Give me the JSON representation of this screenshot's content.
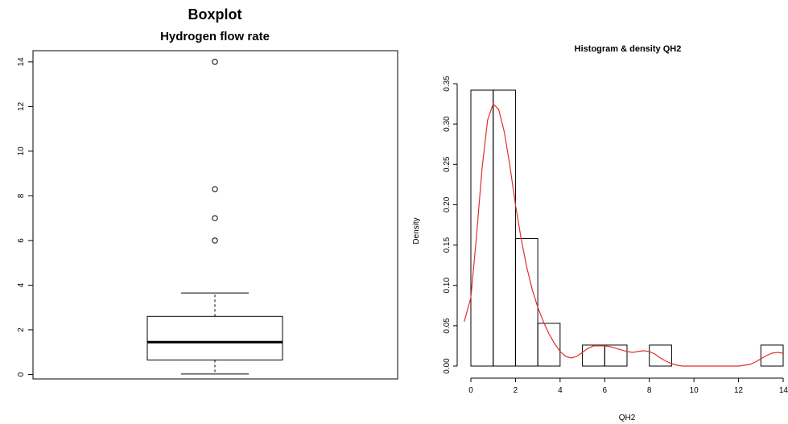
{
  "chart_data": [
    {
      "type": "boxplot",
      "title": "Boxplot",
      "subtitle": "Hydrogen flow rate",
      "xlabel": "",
      "ylabel": "",
      "ylim": [
        -0.2,
        14.5
      ],
      "yticks": [
        0,
        2,
        4,
        6,
        8,
        10,
        12,
        14
      ],
      "stats": {
        "lower_whisker": 0.02,
        "q1": 0.65,
        "median": 1.45,
        "q3": 2.6,
        "upper_whisker": 3.65
      },
      "outliers": [
        6.0,
        7.0,
        8.3,
        14.0
      ],
      "grid": false
    },
    {
      "type": "histogram",
      "title": "Histogram & density QH2",
      "xlabel": "QH2",
      "ylabel": "Density",
      "xlim": [
        0,
        14
      ],
      "ylim": [
        0,
        0.35
      ],
      "xticks": [
        0,
        2,
        4,
        6,
        8,
        10,
        12,
        14
      ],
      "yticks": [
        0.0,
        0.05,
        0.1,
        0.15,
        0.2,
        0.25,
        0.3,
        0.35
      ],
      "bins": [
        {
          "x0": 0,
          "x1": 1,
          "density": 0.342
        },
        {
          "x0": 1,
          "x1": 2,
          "density": 0.342
        },
        {
          "x0": 2,
          "x1": 3,
          "density": 0.158
        },
        {
          "x0": 3,
          "x1": 4,
          "density": 0.053
        },
        {
          "x0": 4,
          "x1": 5,
          "density": 0.0
        },
        {
          "x0": 5,
          "x1": 6,
          "density": 0.026
        },
        {
          "x0": 6,
          "x1": 7,
          "density": 0.026
        },
        {
          "x0": 7,
          "x1": 8,
          "density": 0.0
        },
        {
          "x0": 8,
          "x1": 9,
          "density": 0.026
        },
        {
          "x0": 9,
          "x1": 10,
          "density": 0.0
        },
        {
          "x0": 10,
          "x1": 11,
          "density": 0.0
        },
        {
          "x0": 11,
          "x1": 12,
          "density": 0.0
        },
        {
          "x0": 12,
          "x1": 13,
          "density": 0.0
        },
        {
          "x0": 13,
          "x1": 14,
          "density": 0.026
        }
      ],
      "density_curve": {
        "color": "#e0302a",
        "x": [
          -0.3,
          0.0,
          0.25,
          0.5,
          0.75,
          1.0,
          1.25,
          1.5,
          1.75,
          2.0,
          2.25,
          2.5,
          2.75,
          3.0,
          3.25,
          3.5,
          3.75,
          4.0,
          4.25,
          4.5,
          4.75,
          5.0,
          5.25,
          5.5,
          5.75,
          6.0,
          6.25,
          6.5,
          6.75,
          7.0,
          7.25,
          7.5,
          7.75,
          8.0,
          8.25,
          8.5,
          8.75,
          9.0,
          9.25,
          9.5,
          10.0,
          10.5,
          11.0,
          11.5,
          12.0,
          12.5,
          12.75,
          13.0,
          13.25,
          13.5,
          13.75,
          14.0
        ],
        "y": [
          0.055,
          0.085,
          0.16,
          0.245,
          0.305,
          0.325,
          0.318,
          0.29,
          0.248,
          0.2,
          0.158,
          0.123,
          0.095,
          0.073,
          0.055,
          0.04,
          0.028,
          0.018,
          0.012,
          0.01,
          0.012,
          0.017,
          0.022,
          0.025,
          0.025,
          0.025,
          0.024,
          0.022,
          0.02,
          0.018,
          0.017,
          0.018,
          0.019,
          0.018,
          0.015,
          0.01,
          0.006,
          0.003,
          0.001,
          0.0,
          0.0,
          0.0,
          0.0,
          0.0,
          0.0,
          0.002,
          0.005,
          0.009,
          0.013,
          0.016,
          0.017,
          0.016
        ]
      },
      "bar_stroke": "#000000",
      "grid": false
    }
  ]
}
